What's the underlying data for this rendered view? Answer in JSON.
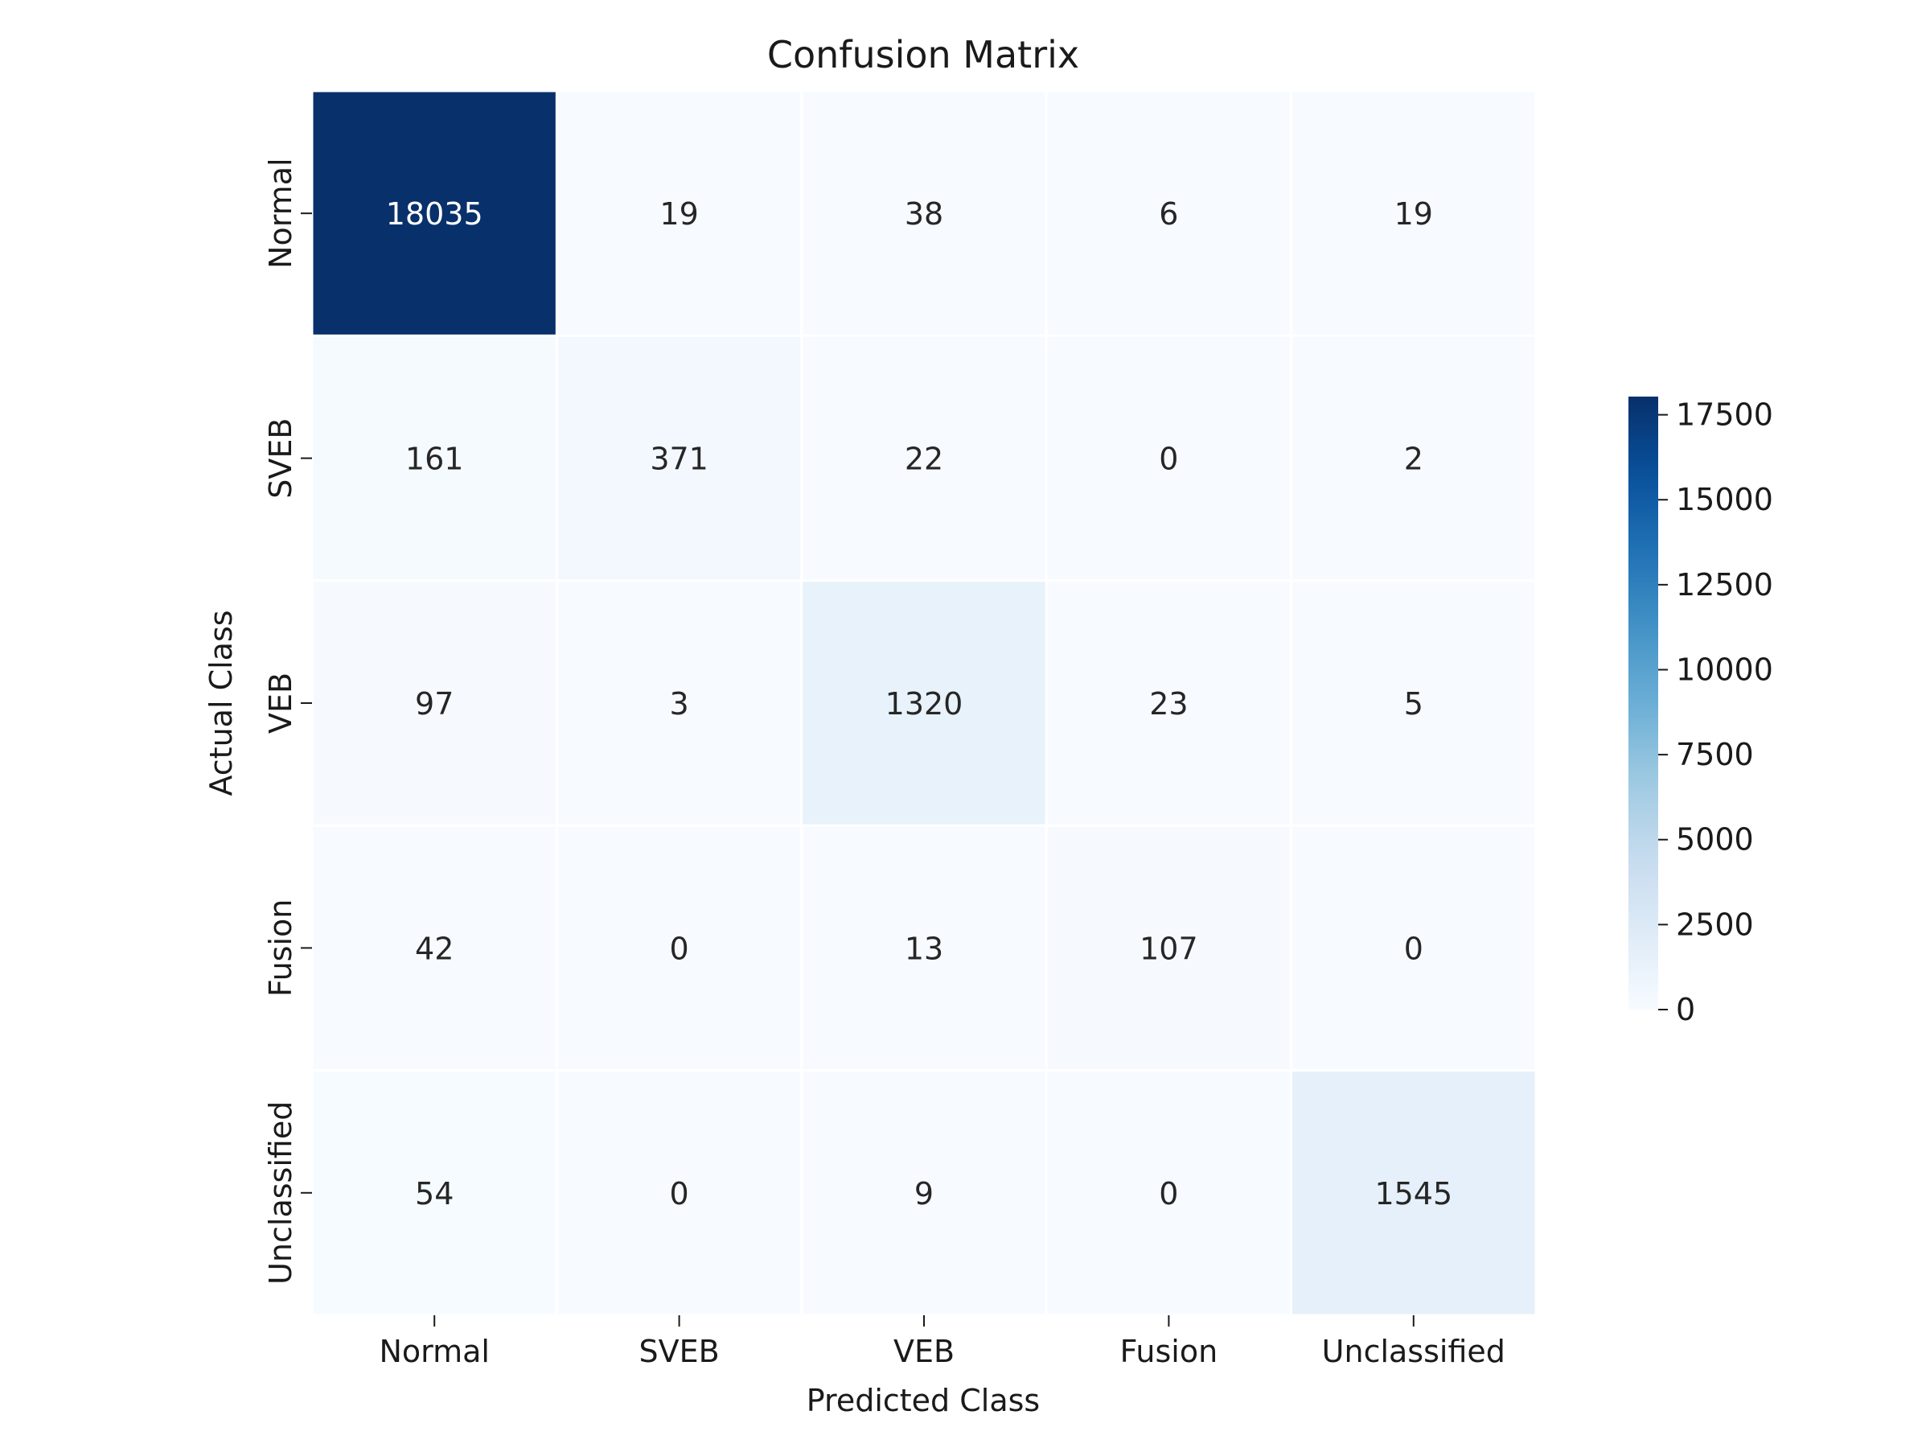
{
  "chart_data": {
    "type": "heatmap",
    "title": "Confusion Matrix",
    "xlabel": "Predicted Class",
    "ylabel": "Actual Class",
    "x_categories": [
      "Normal",
      "SVEB",
      "VEB",
      "Fusion",
      "Unclassified"
    ],
    "y_categories": [
      "Normal",
      "SVEB",
      "VEB",
      "Fusion",
      "Unclassified"
    ],
    "values": [
      [
        18035,
        19,
        38,
        6,
        19
      ],
      [
        161,
        371,
        22,
        0,
        2
      ],
      [
        97,
        3,
        1320,
        23,
        5
      ],
      [
        42,
        0,
        13,
        107,
        0
      ],
      [
        54,
        0,
        9,
        0,
        1545
      ]
    ],
    "colormap": "Blues",
    "color_range": [
      0,
      18035
    ],
    "colorbar_ticks": [
      "0",
      "2500",
      "5000",
      "7500",
      "10000",
      "12500",
      "15000",
      "17500"
    ],
    "colorbar_tick_values": [
      0,
      2500,
      5000,
      7500,
      10000,
      12500,
      15000,
      17500
    ],
    "colors": {
      "low": "#f7fbff",
      "high": "#08306b",
      "text_dark": "#262626",
      "text_light": "#ffffff",
      "cell_border": "#ffffff"
    }
  }
}
